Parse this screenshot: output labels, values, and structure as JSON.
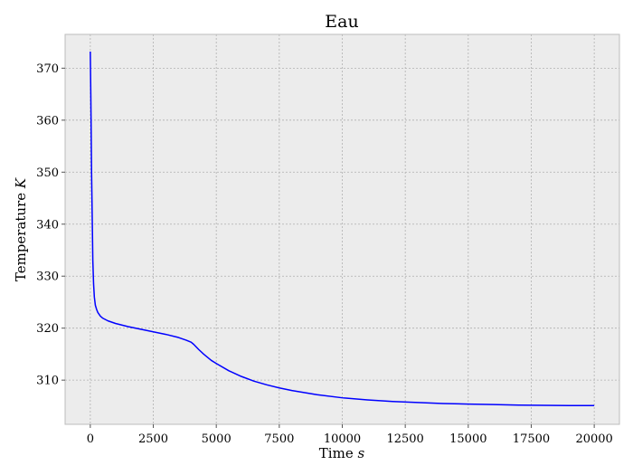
{
  "chart_data": {
    "type": "line",
    "title": "Eau",
    "xlabel": "Time",
    "xlabel_unit": "s",
    "ylabel": "Temperature",
    "ylabel_unit": "K",
    "xlim": [
      -1000,
      21000
    ],
    "ylim": [
      301.5,
      376.5
    ],
    "x_ticks": [
      0,
      2500,
      5000,
      7500,
      10000,
      12500,
      15000,
      17500,
      20000
    ],
    "y_ticks": [
      310,
      320,
      330,
      340,
      350,
      360,
      370
    ],
    "grid": true,
    "colors": {
      "line": "#0000ff",
      "background": "#ececec",
      "grid": "#b0b0b0"
    },
    "series": [
      {
        "x": [
          0,
          20,
          50,
          80,
          100,
          130,
          160,
          200,
          250,
          300,
          400,
          500,
          700,
          1000,
          1500,
          2000,
          2500,
          3000,
          3500,
          3800,
          4000,
          4100,
          4300,
          4500,
          4800,
          5000,
          5500,
          6000,
          6500,
          7000,
          7500,
          8000,
          9000,
          10000,
          11000,
          12000,
          13000,
          14000,
          15000,
          16000,
          17000,
          18000,
          19000,
          20000
        ],
        "y": [
          373.2,
          365,
          350,
          340,
          333,
          328.5,
          326,
          324.4,
          323.6,
          323,
          322.3,
          321.9,
          321.4,
          320.9,
          320.3,
          319.8,
          319.3,
          318.8,
          318.2,
          317.7,
          317.3,
          316.9,
          315.9,
          315,
          313.8,
          313.2,
          311.8,
          310.7,
          309.8,
          309.1,
          308.5,
          308.0,
          307.2,
          306.6,
          306.2,
          305.9,
          305.7,
          305.5,
          305.4,
          305.3,
          305.2,
          305.15,
          305.1,
          305.1
        ]
      }
    ]
  }
}
